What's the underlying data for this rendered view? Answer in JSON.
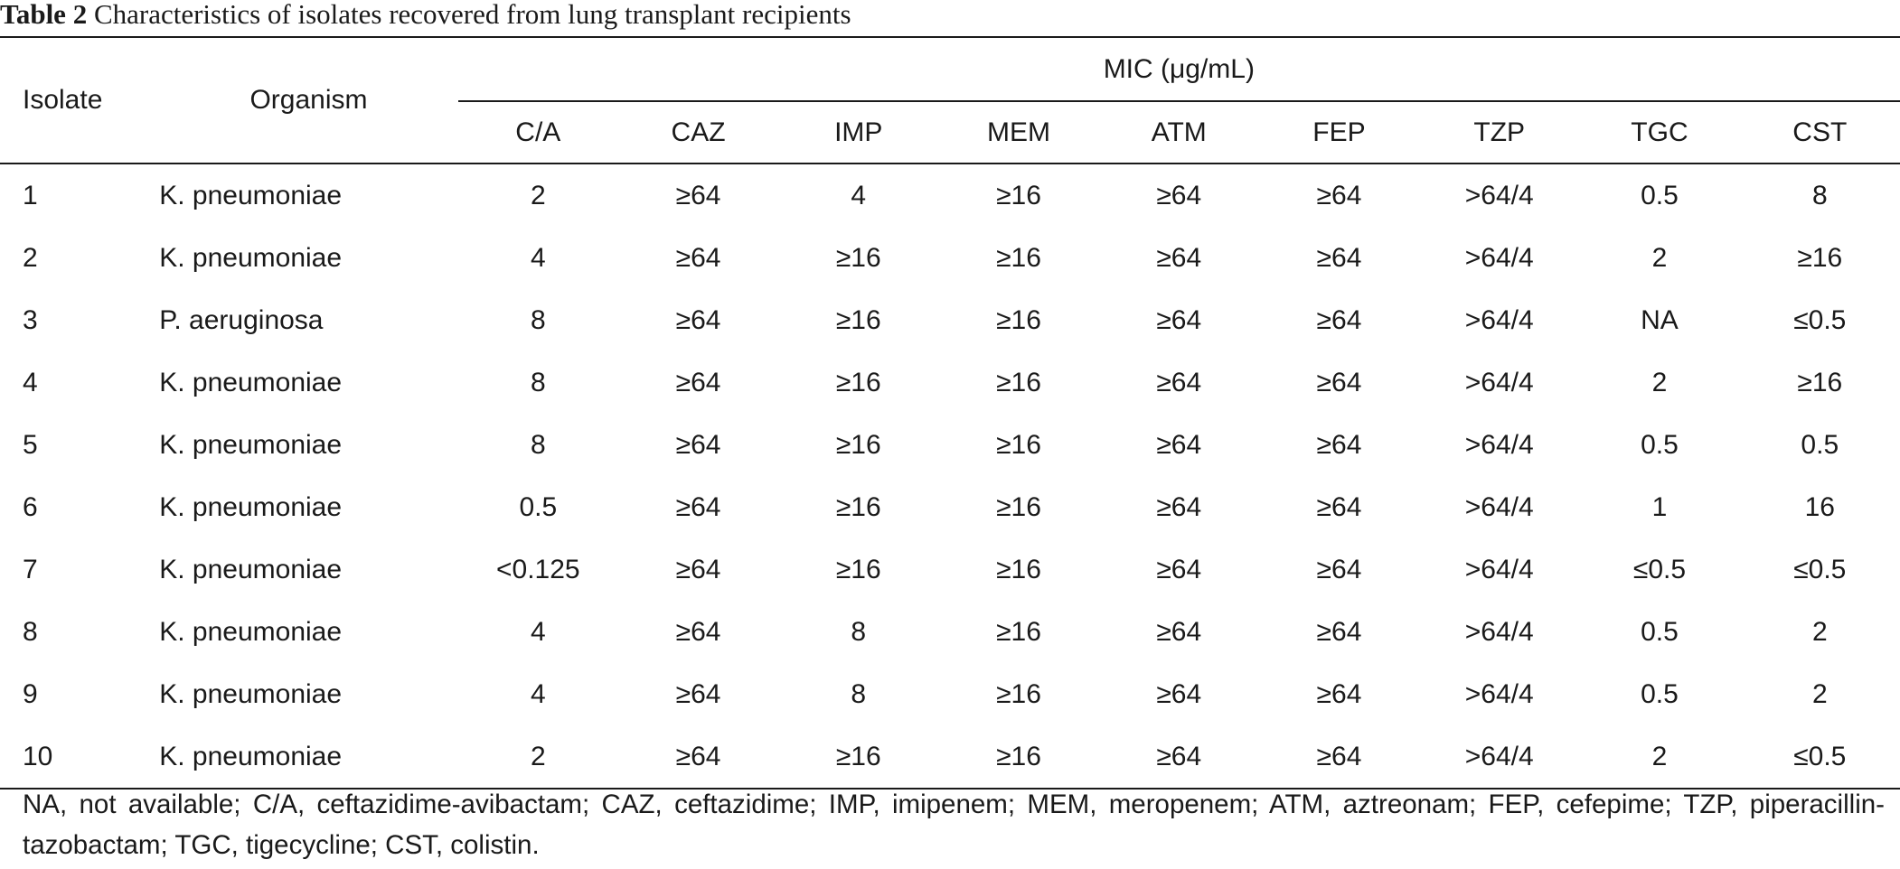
{
  "caption": {
    "label": "Table 2",
    "text": "Characteristics of isolates recovered from lung transplant recipients"
  },
  "headers": {
    "isolate": "Isolate",
    "organism": "Organism",
    "mic_group": "MIC (μg/mL)",
    "columns": [
      "C/A",
      "CAZ",
      "IMP",
      "MEM",
      "ATM",
      "FEP",
      "TZP",
      "TGC",
      "CST"
    ]
  },
  "rows": [
    {
      "isolate": "1",
      "organism": "K. pneumoniae",
      "values": [
        "2",
        "≥64",
        "4",
        "≥16",
        "≥64",
        "≥64",
        ">64/4",
        "0.5",
        "8"
      ]
    },
    {
      "isolate": "2",
      "organism": "K. pneumoniae",
      "values": [
        "4",
        "≥64",
        "≥16",
        "≥16",
        "≥64",
        "≥64",
        ">64/4",
        "2",
        "≥16"
      ]
    },
    {
      "isolate": "3",
      "organism": "P. aeruginosa",
      "values": [
        "8",
        "≥64",
        "≥16",
        "≥16",
        "≥64",
        "≥64",
        ">64/4",
        "NA",
        "≤0.5"
      ]
    },
    {
      "isolate": "4",
      "organism": "K. pneumoniae",
      "values": [
        "8",
        "≥64",
        "≥16",
        "≥16",
        "≥64",
        "≥64",
        ">64/4",
        "2",
        "≥16"
      ]
    },
    {
      "isolate": "5",
      "organism": "K. pneumoniae",
      "values": [
        "8",
        "≥64",
        "≥16",
        "≥16",
        "≥64",
        "≥64",
        ">64/4",
        "0.5",
        "0.5"
      ]
    },
    {
      "isolate": "6",
      "organism": "K. pneumoniae",
      "values": [
        "0.5",
        "≥64",
        "≥16",
        "≥16",
        "≥64",
        "≥64",
        ">64/4",
        "1",
        "16"
      ]
    },
    {
      "isolate": "7",
      "organism": "K. pneumoniae",
      "values": [
        "<0.125",
        "≥64",
        "≥16",
        "≥16",
        "≥64",
        "≥64",
        ">64/4",
        "≤0.5",
        "≤0.5"
      ]
    },
    {
      "isolate": "8",
      "organism": "K. pneumoniae",
      "values": [
        "4",
        "≥64",
        "8",
        "≥16",
        "≥64",
        "≥64",
        ">64/4",
        "0.5",
        "2"
      ]
    },
    {
      "isolate": "9",
      "organism": "K. pneumoniae",
      "values": [
        "4",
        "≥64",
        "8",
        "≥16",
        "≥64",
        "≥64",
        ">64/4",
        "0.5",
        "2"
      ]
    },
    {
      "isolate": "10",
      "organism": "K. pneumoniae",
      "values": [
        "2",
        "≥64",
        "≥16",
        "≥16",
        "≥64",
        "≥64",
        ">64/4",
        "2",
        "≤0.5"
      ]
    }
  ],
  "footnote": "NA, not available; C/A, ceftazidime-avibactam; CAZ, ceftazidime; IMP, imipenem; MEM, meropenem; ATM, aztreonam; FEP, cefepime; TZP, piperacillin-tazobactam; TGC, tigecycline; CST, colistin."
}
